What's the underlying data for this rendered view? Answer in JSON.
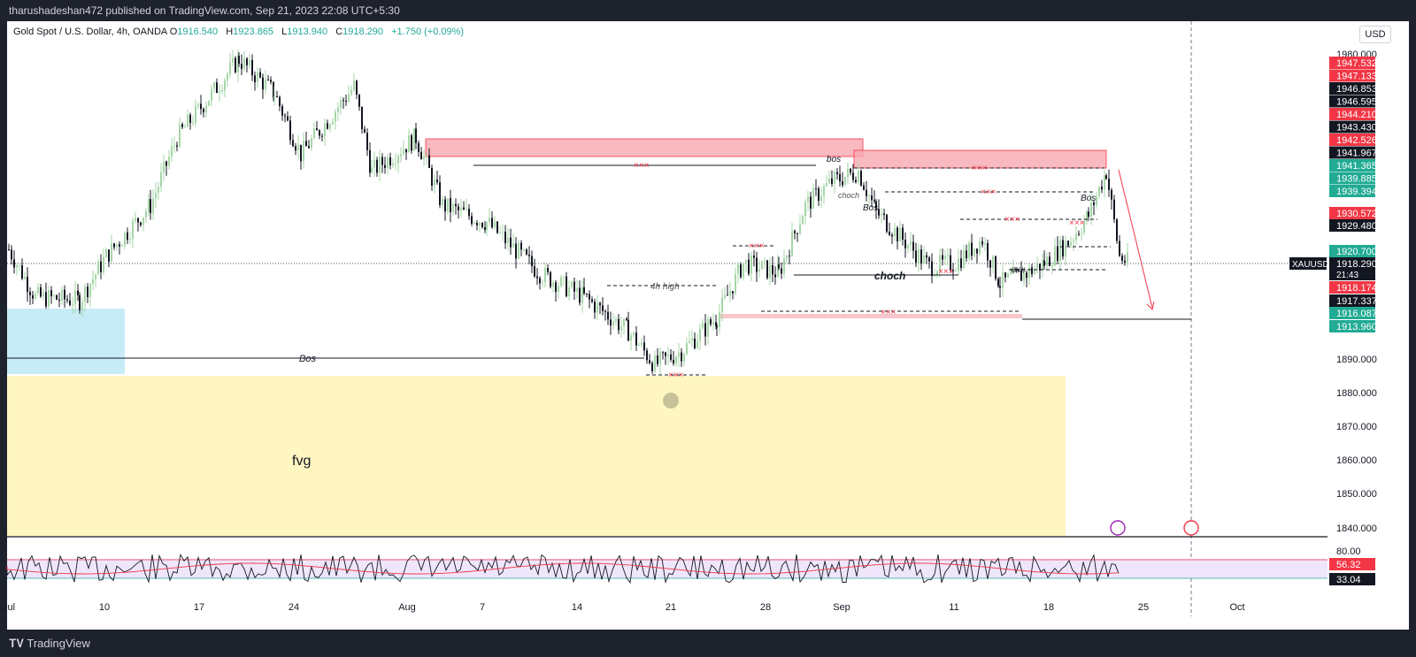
{
  "header": {
    "published_by": "tharushadeshan472 published on TradingView.com, Sep 21, 2023 22:08 UTC+5:30"
  },
  "legend": {
    "symbol": "Gold Spot / U.S. Dollar, 4h, OANDA",
    "open_label": "O",
    "open": "1916.540",
    "high_label": "H",
    "high": "1923.865",
    "low_label": "L",
    "low": "1913.940",
    "close_label": "C",
    "close": "1918.290",
    "change": "+1.750 (+0.09%)"
  },
  "currency_button": "USD",
  "footer": {
    "brand": "TradingView"
  },
  "colors": {
    "up": "#22ab94",
    "down": "#f23645",
    "supply_zone": "#f7a8b0",
    "fvg_zone": "#fff6c2",
    "demand_zone": "#c7ecf7",
    "rsi_band": "#efe6fb"
  },
  "chart_data": {
    "type": "candlestick",
    "ylim": [
      1836,
      1985
    ],
    "x_ticks": [
      "Jul",
      "10",
      "17",
      "24",
      "Aug",
      "7",
      "14",
      "21",
      "28",
      "Sep",
      "11",
      "18",
      "25",
      "Oct"
    ],
    "y_ticks": [
      "1980.000",
      "1890.000",
      "1880.000",
      "1870.000",
      "1860.000",
      "1850.000",
      "1840.000"
    ],
    "price_tags": [
      {
        "value": "1947.532",
        "color": "#f23645"
      },
      {
        "value": "1947.133",
        "color": "#f23645"
      },
      {
        "value": "1946.853",
        "color": "#131722"
      },
      {
        "value": "1946.595",
        "color": "#131722"
      },
      {
        "value": "1944.210",
        "color": "#f23645"
      },
      {
        "value": "1943.430",
        "color": "#131722"
      },
      {
        "value": "1942.526",
        "color": "#f23645"
      },
      {
        "value": "1941.967",
        "color": "#131722"
      },
      {
        "value": "1941.365",
        "color": "#22ab94"
      },
      {
        "value": "1939.885",
        "color": "#22ab94"
      },
      {
        "value": "1939.394",
        "color": "#22ab94"
      },
      {
        "value": "1930.572",
        "color": "#f23645"
      },
      {
        "value": "1929.480",
        "color": "#131722"
      },
      {
        "value": "1920.700",
        "color": "#22ab94"
      },
      {
        "value": "1918.174",
        "color": "#f23645"
      },
      {
        "value": "1917.337",
        "color": "#131722"
      },
      {
        "value": "1916.087",
        "color": "#22ab94"
      },
      {
        "value": "1913.960",
        "color": "#22ab94"
      }
    ],
    "current_price": {
      "symbol": "XAUUSD",
      "value": "1918.290",
      "countdown": "21:43"
    },
    "annotations": {
      "bos": "Bos",
      "bos_lower": "bos",
      "choch": "choch",
      "four_h_high": "4h high",
      "fvg": "fvg",
      "xxx": "×××",
      "hash": "###"
    },
    "rsi": {
      "ticks": [
        "80.00"
      ],
      "values": [
        "56.32",
        "33.04"
      ]
    },
    "series_key_points": [
      [
        0,
        1922
      ],
      [
        30,
        1908
      ],
      [
        80,
        1907
      ],
      [
        110,
        1920
      ],
      [
        160,
        1935
      ],
      [
        190,
        1955
      ],
      [
        260,
        1978
      ],
      [
        300,
        1968
      ],
      [
        330,
        1950
      ],
      [
        390,
        1970
      ],
      [
        410,
        1945
      ],
      [
        460,
        1955
      ],
      [
        490,
        1935
      ],
      [
        540,
        1930
      ],
      [
        600,
        1915
      ],
      [
        650,
        1908
      ],
      [
        700,
        1898
      ],
      [
        730,
        1888
      ],
      [
        760,
        1892
      ],
      [
        800,
        1902
      ],
      [
        830,
        1918
      ],
      [
        870,
        1915
      ],
      [
        900,
        1935
      ],
      [
        930,
        1942
      ],
      [
        960,
        1945
      ],
      [
        980,
        1933
      ],
      [
        1010,
        1925
      ],
      [
        1040,
        1917
      ],
      [
        1070,
        1918
      ],
      [
        1100,
        1925
      ],
      [
        1120,
        1912
      ],
      [
        1150,
        1915
      ],
      [
        1170,
        1918
      ],
      [
        1200,
        1925
      ],
      [
        1220,
        1932
      ],
      [
        1240,
        1945
      ],
      [
        1255,
        1920
      ],
      [
        1265,
        1918
      ]
    ]
  }
}
